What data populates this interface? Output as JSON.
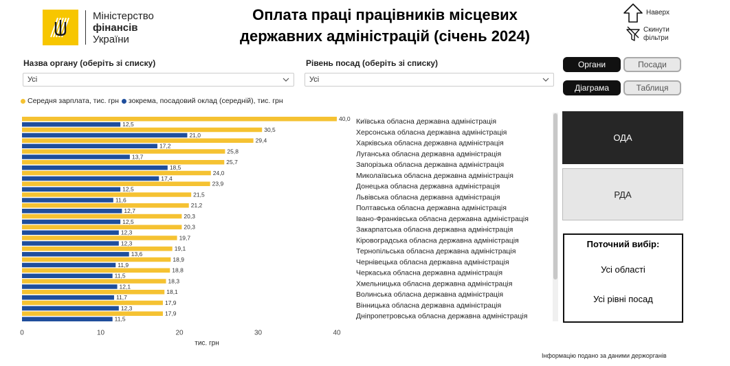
{
  "header": {
    "logo": {
      "line1": "Міністерство",
      "line2": "фінансів",
      "line3": "України",
      "mark_color": "#f7c600"
    },
    "title_line1": "Оплата праці працівників місцевих",
    "title_line2": "державних адміністрацій (січень 2024)",
    "nav_up_label": "Наверх",
    "reset_filters_label_1": "Скинути",
    "reset_filters_label_2": "фільтри"
  },
  "filters": {
    "body_label": "Назва органу (оберіть зі списку)",
    "body_value": "Усі",
    "level_label": "Рівень посад (оберіть зі списку)",
    "level_value": "Усі"
  },
  "toggles": {
    "bodies": "Органи",
    "positions": "Посади",
    "diagram": "Діаграма",
    "table": "Таблиця"
  },
  "panels": {
    "oda": "ОДА",
    "rda": "РДА"
  },
  "current_selection": {
    "heading": "Поточний вибір:",
    "value1": "Усі області",
    "value2": "Усі рівні посад"
  },
  "source_note": "Інформацію подано за даними держорганів",
  "colors": {
    "avg_salary": "#f5c232",
    "base_salary": "#1f4e9c"
  },
  "chart_data": {
    "type": "bar",
    "orientation": "horizontal",
    "categories": [
      "Київська обласна державна адміністрація",
      "Херсонська обласна державна адміністрація",
      "Харківська обласна державна адміністрація",
      "Луганська обласна державна адміністрація",
      "Запорізька обласна державна адміністрація",
      "Миколаївська обласна державна адміністрація",
      "Донецька обласна державна адміністрація",
      "Львівська обласна державна адміністрація",
      "Полтавська обласна державна адміністрація",
      "Івано-Франківська обласна державна адміністрація",
      "Закарпатська обласна державна адміністрація",
      "Кіровоградська обласна державна адміністрація",
      "Тернопільська обласна державна адміністрація",
      "Чернівецька обласна державна адміністрація",
      "Черкаська обласна державна адміністрація",
      "Хмельницька обласна державна адміністрація",
      "Волинська обласна державна адміністрація",
      "Вінницька обласна державна адміністрація",
      "Дніпропетровська обласна державна адміністрація"
    ],
    "series": [
      {
        "name": "Середня зарплата, тис. грн",
        "values": [
          40.0,
          30.5,
          29.4,
          25.8,
          25.7,
          24.0,
          23.9,
          21.5,
          21.2,
          20.3,
          20.3,
          19.7,
          19.1,
          18.9,
          18.8,
          18.3,
          18.1,
          17.9,
          17.9
        ]
      },
      {
        "name": "зокрема, посадовий оклад (середній), тис. грн",
        "values": [
          12.5,
          21.0,
          17.2,
          13.7,
          18.5,
          17.4,
          12.5,
          11.6,
          12.7,
          12.5,
          12.3,
          12.3,
          13.6,
          11.9,
          11.5,
          12.1,
          11.7,
          12.3,
          11.5
        ]
      }
    ],
    "value_labels": [
      [
        "40,0",
        "30,5",
        "29,4",
        "25,8",
        "25,7",
        "24,0",
        "23,9",
        "21,5",
        "21,2",
        "20,3",
        "20,3",
        "19,7",
        "19,1",
        "18,9",
        "18,8",
        "18,3",
        "18,1",
        "17,9",
        "17,9"
      ],
      [
        "12,5",
        "21,0",
        "17,2",
        "13,7",
        "18,5",
        "17,4",
        "12,5",
        "11,6",
        "12,7",
        "12,5",
        "12,3",
        "12,3",
        "13,6",
        "11,9",
        "11,5",
        "12,1",
        "11,7",
        "12,3",
        "11,5"
      ]
    ],
    "x_ticks": [
      0,
      10,
      20,
      30,
      40
    ],
    "xlim": [
      0,
      40
    ],
    "xlabel": "тис. грн",
    "legend_position": "top-left",
    "grid": false
  }
}
